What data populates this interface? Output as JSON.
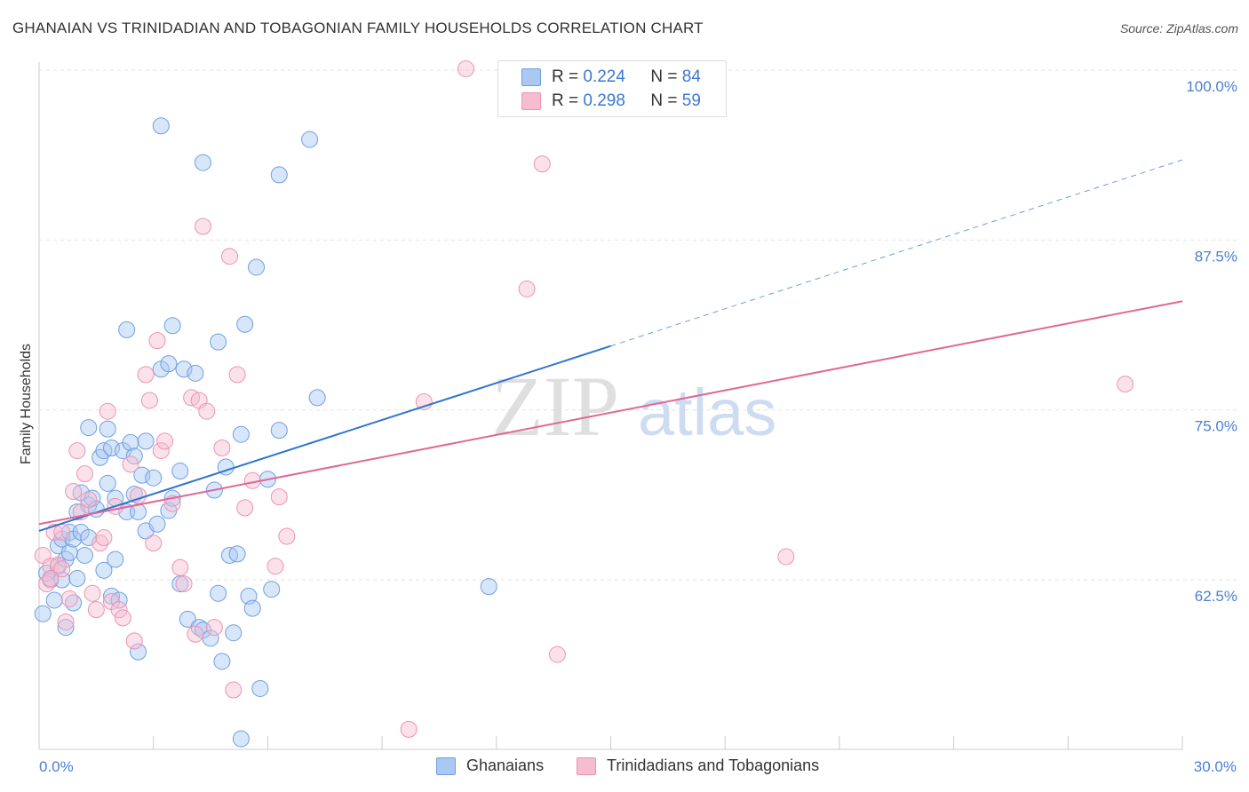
{
  "header": {
    "title": "GHANAIAN VS TRINIDADIAN AND TOBAGONIAN FAMILY HOUSEHOLDS CORRELATION CHART",
    "source": "Source: ZipAtlas.com"
  },
  "watermark": {
    "part1": "ZIP",
    "part2": "atlas"
  },
  "legend": {
    "rows": [
      {
        "r_label": "R = ",
        "r_value": "0.224",
        "n_label": "N = ",
        "n_value": "84"
      },
      {
        "r_label": "R = ",
        "r_value": "0.298",
        "n_label": "N = ",
        "n_value": "59"
      }
    ]
  },
  "bottom_legend": {
    "series1": "Ghanaians",
    "series2": "Trinidadians and Tobagonians"
  },
  "colors": {
    "blue_fill": "#a9c8f2",
    "blue_stroke": "#6f9fe0",
    "blue_line": "#2f74d0",
    "pink_fill": "#f6bcd0",
    "pink_stroke": "#ec93b2",
    "pink_line": "#e06795",
    "tick": "#4a7fd4",
    "grid": "#e2e2e2"
  },
  "chart_data": {
    "type": "scatter",
    "title": "GHANAIAN VS TRINIDADIAN AND TOBAGONIAN FAMILY HOUSEHOLDS CORRELATION CHART",
    "xlabel": "",
    "ylabel": "Family Households",
    "x_unit": "%",
    "xlim": [
      0,
      30
    ],
    "ylim": [
      50.5,
      101.5
    ],
    "x_tick_labels": [
      {
        "value": 0,
        "label": "0.0%"
      },
      {
        "value": 30,
        "label": "30.0%"
      }
    ],
    "y_tick_labels": [
      {
        "value": 62.5,
        "label": "62.5%"
      },
      {
        "value": 75.0,
        "label": "75.0%"
      },
      {
        "value": 87.5,
        "label": "87.5%"
      },
      {
        "value": 100.0,
        "label": "100.0%"
      }
    ],
    "grid": true,
    "legend_position": "top-center",
    "series": [
      {
        "name": "Ghanaians",
        "color": "#a9c8f2",
        "r": 0.224,
        "n": 84,
        "trend": {
          "x0": 0.0,
          "y0": 66.1,
          "x1": 15.0,
          "y1": 79.7,
          "dashed_to_x": 30.0,
          "dashed_to_y": 93.4
        },
        "points": [
          [
            0.1,
            60.0
          ],
          [
            0.2,
            63.0
          ],
          [
            0.3,
            62.5
          ],
          [
            0.4,
            61.0
          ],
          [
            0.5,
            63.5
          ],
          [
            0.5,
            65.0
          ],
          [
            0.6,
            62.5
          ],
          [
            0.6,
            65.5
          ],
          [
            0.7,
            59.0
          ],
          [
            0.7,
            64.0
          ],
          [
            0.8,
            66.0
          ],
          [
            0.8,
            64.5
          ],
          [
            0.9,
            65.5
          ],
          [
            1.0,
            62.6
          ],
          [
            1.0,
            67.5
          ],
          [
            1.1,
            66.0
          ],
          [
            1.1,
            68.9
          ],
          [
            1.2,
            64.3
          ],
          [
            1.3,
            68.0
          ],
          [
            1.3,
            65.6
          ],
          [
            1.3,
            73.7
          ],
          [
            1.4,
            68.5
          ],
          [
            1.5,
            67.7
          ],
          [
            1.6,
            71.5
          ],
          [
            1.7,
            63.2
          ],
          [
            1.7,
            72.0
          ],
          [
            1.8,
            69.6
          ],
          [
            1.8,
            73.6
          ],
          [
            1.9,
            72.2
          ],
          [
            1.9,
            61.3
          ],
          [
            2.0,
            64.0
          ],
          [
            2.0,
            68.5
          ],
          [
            2.1,
            61.0
          ],
          [
            2.2,
            72.0
          ],
          [
            2.3,
            80.9
          ],
          [
            2.3,
            67.5
          ],
          [
            2.4,
            72.6
          ],
          [
            2.5,
            71.6
          ],
          [
            2.5,
            68.8
          ],
          [
            2.6,
            57.2
          ],
          [
            2.6,
            67.5
          ],
          [
            2.7,
            70.2
          ],
          [
            2.8,
            66.1
          ],
          [
            2.8,
            72.7
          ],
          [
            3.0,
            70.0
          ],
          [
            3.1,
            66.6
          ],
          [
            3.2,
            78.0
          ],
          [
            3.2,
            95.9
          ],
          [
            3.4,
            78.4
          ],
          [
            3.4,
            67.6
          ],
          [
            3.5,
            68.5
          ],
          [
            3.5,
            81.2
          ],
          [
            3.7,
            70.5
          ],
          [
            3.7,
            62.2
          ],
          [
            3.8,
            78.0
          ],
          [
            3.9,
            59.6
          ],
          [
            4.1,
            77.7
          ],
          [
            4.2,
            59.0
          ],
          [
            4.3,
            58.8
          ],
          [
            4.3,
            93.2
          ],
          [
            4.5,
            58.2
          ],
          [
            4.6,
            69.1
          ],
          [
            4.7,
            61.5
          ],
          [
            4.7,
            80.0
          ],
          [
            4.8,
            56.5
          ],
          [
            4.9,
            70.8
          ],
          [
            5.0,
            64.3
          ],
          [
            5.1,
            58.6
          ],
          [
            5.2,
            64.4
          ],
          [
            5.3,
            50.8
          ],
          [
            5.3,
            73.2
          ],
          [
            5.4,
            81.3
          ],
          [
            5.5,
            61.3
          ],
          [
            5.6,
            60.4
          ],
          [
            5.7,
            85.5
          ],
          [
            5.8,
            54.5
          ],
          [
            6.0,
            69.9
          ],
          [
            6.1,
            61.8
          ],
          [
            6.3,
            92.3
          ],
          [
            6.3,
            73.5
          ],
          [
            7.1,
            94.9
          ],
          [
            7.3,
            75.9
          ],
          [
            11.8,
            62.0
          ],
          [
            0.9,
            60.8
          ]
        ]
      },
      {
        "name": "Trinidadians and Tobagonians",
        "color": "#f6bcd0",
        "r": 0.298,
        "n": 59,
        "trend": {
          "x0": 0.0,
          "y0": 66.6,
          "x1": 30.0,
          "y1": 83.0
        },
        "points": [
          [
            0.1,
            64.3
          ],
          [
            0.2,
            62.2
          ],
          [
            0.3,
            63.5
          ],
          [
            0.4,
            66.0
          ],
          [
            0.5,
            63.6
          ],
          [
            0.6,
            63.3
          ],
          [
            0.6,
            66.0
          ],
          [
            0.7,
            59.4
          ],
          [
            0.8,
            61.1
          ],
          [
            0.9,
            69.0
          ],
          [
            1.0,
            72.0
          ],
          [
            1.1,
            67.5
          ],
          [
            1.2,
            70.3
          ],
          [
            1.3,
            68.4
          ],
          [
            1.4,
            61.5
          ],
          [
            1.5,
            60.3
          ],
          [
            1.6,
            65.2
          ],
          [
            1.7,
            65.6
          ],
          [
            1.8,
            74.9
          ],
          [
            1.9,
            60.9
          ],
          [
            2.0,
            67.9
          ],
          [
            2.1,
            60.3
          ],
          [
            2.2,
            59.7
          ],
          [
            2.4,
            71.0
          ],
          [
            2.5,
            58.0
          ],
          [
            2.6,
            68.7
          ],
          [
            2.8,
            77.6
          ],
          [
            2.9,
            75.7
          ],
          [
            3.0,
            65.2
          ],
          [
            3.1,
            80.1
          ],
          [
            3.2,
            72.0
          ],
          [
            3.3,
            72.7
          ],
          [
            3.5,
            68.1
          ],
          [
            3.7,
            63.4
          ],
          [
            3.8,
            62.2
          ],
          [
            4.0,
            75.9
          ],
          [
            4.1,
            58.5
          ],
          [
            4.2,
            75.7
          ],
          [
            4.3,
            88.5
          ],
          [
            4.4,
            74.9
          ],
          [
            4.6,
            59.0
          ],
          [
            4.8,
            72.2
          ],
          [
            5.0,
            86.3
          ],
          [
            5.1,
            54.4
          ],
          [
            5.2,
            77.6
          ],
          [
            5.4,
            67.8
          ],
          [
            5.6,
            69.8
          ],
          [
            6.2,
            63.5
          ],
          [
            6.3,
            68.6
          ],
          [
            6.5,
            65.7
          ],
          [
            9.7,
            51.5
          ],
          [
            10.1,
            75.6
          ],
          [
            11.2,
            100.1
          ],
          [
            12.8,
            83.9
          ],
          [
            13.2,
            93.1
          ],
          [
            13.6,
            57.0
          ],
          [
            19.6,
            64.2
          ],
          [
            28.5,
            76.9
          ],
          [
            0.3,
            62.6
          ]
        ]
      }
    ]
  }
}
